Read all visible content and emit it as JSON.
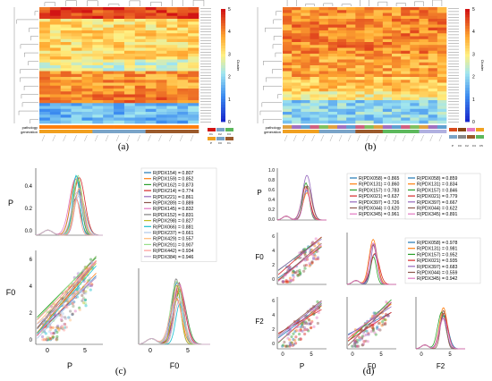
{
  "colors": {
    "heat_low": "#1f2fd6",
    "heat_mid": "#ffe97a",
    "heat_high": "#d21414",
    "pathology_f1": "#ff7f0e",
    "pathology_f2": "#e377c2",
    "generation_p": "#f0a020",
    "generation_f0": "#7aa4c8",
    "generation_f1": "#9b5a2b",
    "generation_f2": "#5cb85c"
  },
  "panel_labels": [
    "(a)",
    "(b)",
    "(c)",
    "(d)"
  ],
  "heatmap_a": {
    "row_labels": [
      "pathology",
      "generation"
    ],
    "colorbar_ticks": [
      "5",
      "4",
      "3",
      "2",
      "1",
      "0"
    ],
    "colorbar_title": "Cluster",
    "legend": [
      "P",
      "F0",
      "F1"
    ],
    "legend_top": [
      "F1",
      "F2",
      "F3"
    ]
  },
  "heatmap_b": {
    "row_labels": [
      "pathology",
      "generation"
    ],
    "colorbar_ticks": [
      "5",
      "4",
      "3",
      "2",
      "1",
      "0"
    ],
    "colorbar_title": "Cluster",
    "legend": [
      "P",
      "F0",
      "F2",
      "F3",
      "F5"
    ]
  },
  "panel_c": {
    "ylabels": [
      "P",
      "F0"
    ],
    "xlabels": [
      "P",
      "F0"
    ],
    "ticks_y_top": [
      "0.4",
      "0.2",
      "0.0"
    ],
    "ticks_y_bottom": [
      "6",
      "4",
      "2",
      "0"
    ],
    "ticks_x": [
      "0",
      "5"
    ],
    "legend": [
      "R(PDX154) = 0.807",
      "R(PDX159) = 0.852",
      "R(PDX162) = 0.873",
      "R(PDX214) = 0.774",
      "R(PDX221) = 0.861",
      "R(PDX289) = 0.889",
      "R(PDX145) = 0.832",
      "R(PDX152) = 0.831",
      "R(PDX298) = 0.827",
      "R(PDX066) = 0.881",
      "R(PDX237) = 0.661",
      "R(PDX429) = 0.557",
      "R(PDX291) = 0.907",
      "R(PDX442) = 0.934",
      "R(PDX384) = 0.946"
    ]
  },
  "panel_d": {
    "ylabels": [
      "P",
      "F0",
      "F2"
    ],
    "xlabels": [
      "P",
      "F0",
      "F2"
    ],
    "ticks_y_top": [
      "1.0",
      "0.8",
      "0.6",
      "0.4",
      "0.2",
      "0.0"
    ],
    "ticks_y_mid": [
      "6",
      "4",
      "2",
      "0"
    ],
    "ticks_y_bot": [
      "6",
      "4",
      "2",
      "0"
    ],
    "ticks_x": [
      "0",
      "5"
    ],
    "legend_pf0": [
      "R(PDX058) = 0.865",
      "R(PDX131) = 0.860",
      "R(PDX157) = 0.783",
      "R(PDX021) = 0.637",
      "R(PDX397) = 0.726",
      "R(PDX044) = 0.620",
      "R(PDX345) = 0.961"
    ],
    "legend_f0f2": [
      "R(PDX058) = 0.859",
      "R(PDX131) = 0.834",
      "R(PDX157) = 0.846",
      "R(PDX021) = 0.779",
      "R(PDX397) = 0.667",
      "R(PDX044) = 0.622",
      "R(PDX345) = 0.891"
    ],
    "legend_pf2": [
      "R(PDX058) = 0.978",
      "R(PDX131) = 0.981",
      "R(PDX157) = 0.952",
      "R(PDX021) = 0.935",
      "R(PDX397) = 0.683",
      "R(PDX044) = 0.559",
      "R(PDX345) = 0.942"
    ]
  },
  "chart_data": [
    {
      "type": "heatmap",
      "title": "",
      "colorbar_range": [
        0,
        5
      ],
      "columns": 15,
      "rows": 40
    },
    {
      "type": "heatmap",
      "title": "",
      "colorbar_range": [
        0,
        5
      ],
      "columns": 18,
      "rows": 40
    },
    {
      "type": "scatter",
      "title": "",
      "xlabel": "P",
      "ylabel": "F0",
      "xlim": [
        -1,
        7
      ],
      "ylim": [
        -0.5,
        6
      ],
      "series_count": 15
    },
    {
      "type": "scatter",
      "title": "",
      "xlabel": "P",
      "ylabel": "F2",
      "xlim": [
        -1,
        7
      ],
      "ylim": [
        -0.5,
        6
      ],
      "series_count": 7
    }
  ]
}
